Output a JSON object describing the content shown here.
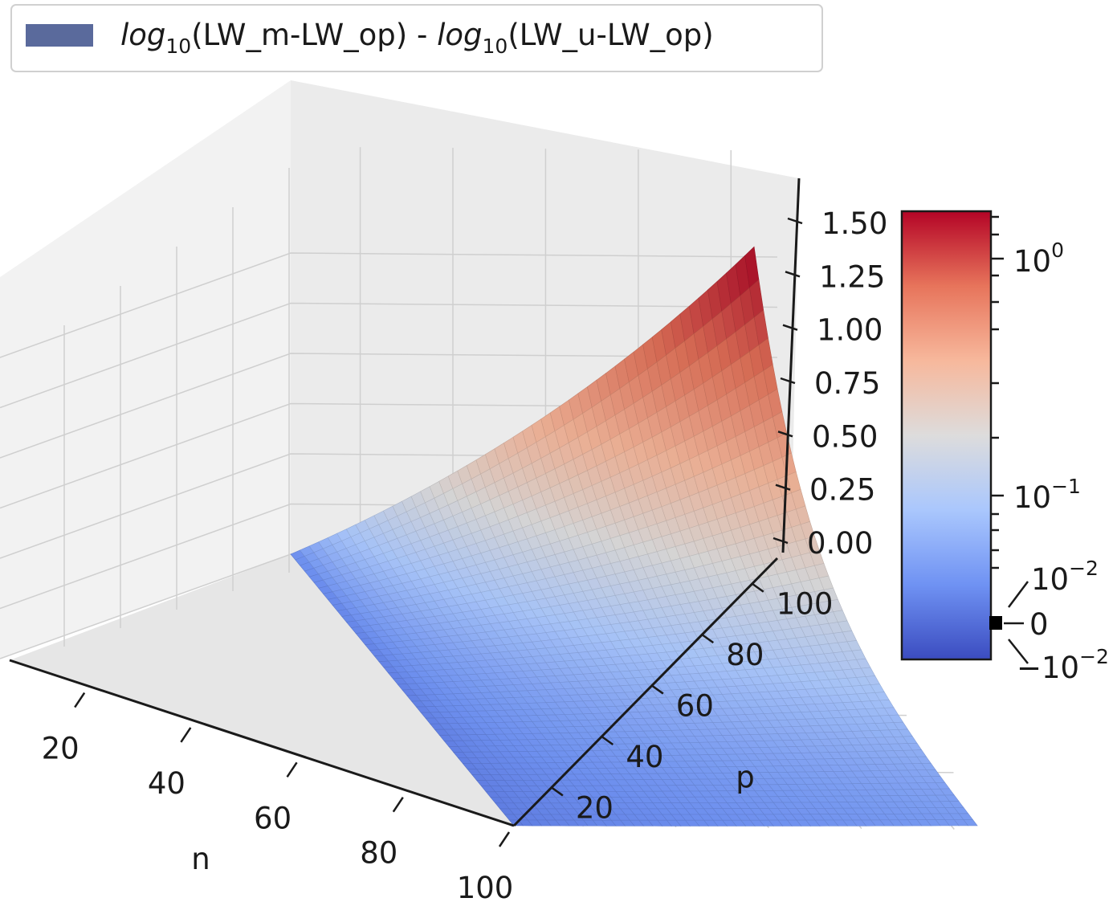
{
  "chart_data": {
    "type": "surface",
    "legend": {
      "placement": "top-left",
      "entries": [
        {
          "log_prefix": "log",
          "subscript": "10",
          "term1": "(LW_m-LW_op)",
          "separator": " - ",
          "term2": "(LW_u-LW_op)",
          "color": "#5a6a9c"
        }
      ]
    },
    "xlabel": "n",
    "ylabel": "p",
    "zlabel": "",
    "x_ticks": [
      "20",
      "40",
      "60",
      "80",
      "100"
    ],
    "y_ticks": [
      "20",
      "40",
      "60",
      "80",
      "100"
    ],
    "z_ticks": [
      "0.00",
      "0.25",
      "0.50",
      "0.75",
      "1.00",
      "1.25",
      "1.50"
    ],
    "xlim": [
      5,
      100
    ],
    "ylim": [
      5,
      110
    ],
    "zlim": [
      0,
      1.55
    ],
    "grid": true,
    "surface": {
      "n_range": [
        5,
        100
      ],
      "p_range": [
        5,
        105
      ],
      "peak_value": 1.55,
      "peak_at": {
        "n": 5,
        "p": 105
      },
      "min_value": 0.0,
      "colormap": "coolwarm"
    },
    "colorbar": {
      "scale": "symlog",
      "colors": [
        "#3b4cc0",
        "#6f92f3",
        "#aac7fd",
        "#dddcdc",
        "#f7b89c",
        "#e7745b",
        "#b40426"
      ],
      "major_ticks": [
        {
          "base": "10",
          "exp": "0"
        },
        {
          "base": "10",
          "exp": "−1"
        }
      ],
      "linear_ticks": [
        {
          "base": "10",
          "exp": "−2"
        },
        {
          "label": "0"
        },
        {
          "sign": "−",
          "base": "10",
          "exp": "−2"
        }
      ]
    }
  }
}
